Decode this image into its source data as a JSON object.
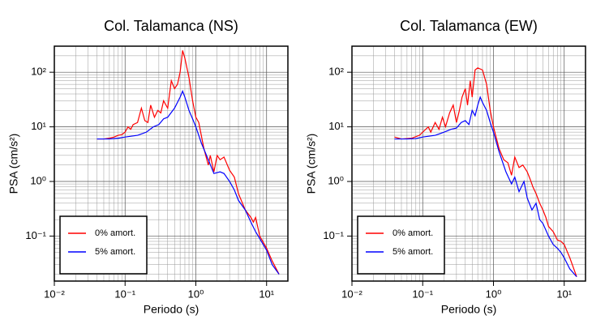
{
  "chart_data": [
    {
      "type": "line",
      "title": "Col. Talamanca (NS)",
      "xlabel": "Periodo (s)",
      "ylabel": "PSA (cm/s²)",
      "xscale": "log",
      "yscale": "log",
      "grid": true,
      "legend": "lower left",
      "xlim": [
        0.01,
        20
      ],
      "ylim": [
        0.015,
        300
      ],
      "xticks": [
        {
          "value": 0.01,
          "label": "10⁻²"
        },
        {
          "value": 0.1,
          "label": "10⁻¹"
        },
        {
          "value": 1,
          "label": "10⁰"
        },
        {
          "value": 10,
          "label": "10¹"
        }
      ],
      "yticks": [
        {
          "value": 0.1,
          "label": "10⁻¹"
        },
        {
          "value": 1,
          "label": "10⁰"
        },
        {
          "value": 10,
          "label": "10¹"
        },
        {
          "value": 100,
          "label": "10²"
        }
      ],
      "series": [
        {
          "name": "0% amort.",
          "color": "#ff0000",
          "x": [
            0.04,
            0.05,
            0.06,
            0.07,
            0.08,
            0.09,
            0.1,
            0.11,
            0.12,
            0.13,
            0.15,
            0.17,
            0.19,
            0.21,
            0.23,
            0.26,
            0.29,
            0.32,
            0.35,
            0.4,
            0.45,
            0.5,
            0.55,
            0.6,
            0.65,
            0.7,
            0.8,
            0.9,
            1.0,
            1.1,
            1.3,
            1.5,
            1.6,
            1.8,
            2.0,
            2.2,
            2.5,
            3,
            3.5,
            4,
            5,
            6,
            6.5,
            7,
            8,
            10,
            12,
            15
          ],
          "values": [
            6,
            6,
            6.2,
            6.5,
            7,
            7.2,
            8,
            10,
            9,
            11,
            12,
            22,
            13,
            12,
            25,
            15,
            20,
            18,
            30,
            22,
            70,
            50,
            60,
            100,
            250,
            180,
            80,
            30,
            15,
            12,
            4,
            2,
            3,
            1.5,
            3,
            2.5,
            2.8,
            1.6,
            1.2,
            0.6,
            0.3,
            0.22,
            0.18,
            0.22,
            0.1,
            0.06,
            0.035,
            0.02
          ]
        },
        {
          "name": "5% amort.",
          "color": "#0000ff",
          "x": [
            0.04,
            0.06,
            0.08,
            0.1,
            0.15,
            0.2,
            0.25,
            0.3,
            0.35,
            0.4,
            0.5,
            0.6,
            0.65,
            0.7,
            0.8,
            0.9,
            1.0,
            1.2,
            1.5,
            1.8,
            2.2,
            2.5,
            3,
            3.5,
            4,
            5,
            6,
            7,
            8,
            10,
            12,
            15
          ],
          "values": [
            6,
            6,
            6.2,
            6.5,
            7,
            8,
            10,
            11,
            14,
            15,
            22,
            35,
            45,
            35,
            20,
            14,
            10,
            5,
            2.5,
            1.4,
            1.5,
            1.4,
            1.0,
            0.7,
            0.45,
            0.3,
            0.18,
            0.12,
            0.09,
            0.055,
            0.03,
            0.02
          ]
        }
      ]
    },
    {
      "type": "line",
      "title": "Col. Talamanca (EW)",
      "xlabel": "Periodo (s)",
      "ylabel": "PSA (cm/s²)",
      "xscale": "log",
      "yscale": "log",
      "grid": true,
      "legend": "lower left",
      "xlim": [
        0.01,
        20
      ],
      "ylim": [
        0.015,
        300
      ],
      "xticks": [
        {
          "value": 0.01,
          "label": "10⁻²"
        },
        {
          "value": 0.1,
          "label": "10⁻¹"
        },
        {
          "value": 1,
          "label": "10⁰"
        },
        {
          "value": 10,
          "label": "10¹"
        }
      ],
      "yticks": [
        {
          "value": 0.1,
          "label": "10⁻¹"
        },
        {
          "value": 1,
          "label": "10⁰"
        },
        {
          "value": 10,
          "label": "10¹"
        },
        {
          "value": 100,
          "label": "10²"
        }
      ],
      "series": [
        {
          "name": "0% amort.",
          "color": "#ff0000",
          "x": [
            0.04,
            0.05,
            0.07,
            0.09,
            0.1,
            0.12,
            0.13,
            0.15,
            0.17,
            0.19,
            0.21,
            0.24,
            0.27,
            0.3,
            0.33,
            0.36,
            0.4,
            0.43,
            0.47,
            0.5,
            0.55,
            0.6,
            0.7,
            0.8,
            0.9,
            1.0,
            1.2,
            1.4,
            1.6,
            1.8,
            2.0,
            2.3,
            2.6,
            3,
            3.3,
            3.6,
            4,
            4.5,
            5,
            5.5,
            6,
            7,
            8,
            9,
            10,
            12,
            15
          ],
          "values": [
            6.5,
            6,
            6.2,
            7,
            8,
            10,
            8,
            12,
            9,
            15,
            10,
            18,
            25,
            12,
            20,
            35,
            50,
            25,
            70,
            35,
            110,
            120,
            110,
            60,
            20,
            10,
            4,
            2.5,
            2.2,
            1.3,
            2.8,
            1.8,
            2,
            1.5,
            1.1,
            0.8,
            0.6,
            0.4,
            0.3,
            0.22,
            0.15,
            0.12,
            0.085,
            0.08,
            0.07,
            0.04,
            0.018
          ]
        },
        {
          "name": "5% amort.",
          "color": "#0000ff",
          "x": [
            0.04,
            0.06,
            0.08,
            0.1,
            0.15,
            0.2,
            0.25,
            0.3,
            0.35,
            0.4,
            0.45,
            0.5,
            0.55,
            0.6,
            0.65,
            0.7,
            0.8,
            0.9,
            1.0,
            1.2,
            1.5,
            1.8,
            2.0,
            2.3,
            2.7,
            3,
            3.5,
            4,
            4.5,
            5,
            6,
            7,
            8,
            9,
            10,
            12,
            15
          ],
          "values": [
            6,
            6,
            6.1,
            6.5,
            7,
            8,
            9,
            9.5,
            12,
            13,
            11,
            20,
            16,
            25,
            35,
            28,
            20,
            12,
            8,
            3.5,
            1.5,
            0.9,
            1.2,
            0.65,
            1.0,
            0.5,
            0.3,
            0.4,
            0.2,
            0.17,
            0.1,
            0.07,
            0.06,
            0.05,
            0.04,
            0.025,
            0.018
          ]
        }
      ]
    }
  ]
}
